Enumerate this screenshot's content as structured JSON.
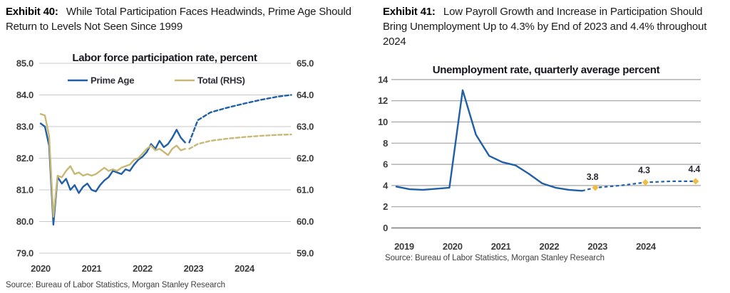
{
  "left_panel": {
    "exhibit_label": "Exhibit 40:",
    "exhibit_title": "While Total Participation Faces Headwinds, Prime Age Should Return to Levels Not Seen Since 1999",
    "source": "Source: Bureau of Labor Statistics, Morgan Stanley Research"
  },
  "right_panel": {
    "exhibit_label": "Exhibit 41:",
    "exhibit_title": "Low Payroll Growth and Increase in Participation Should Bring Unemployment Up to 4.3% by End of 2023 and 4.4% throughout 2024",
    "source": "Source: Bureau of Labor Statistics, Morgan Stanley Research"
  },
  "colors": {
    "blue_line": "#1f5fa8",
    "tan_line": "#c9b873",
    "marker_gold": "#efbd42",
    "grid_left": "#c9c9c9",
    "grid_right": "#a3a3a3",
    "axis_baseline": "#8a8a8a"
  },
  "chart_data": [
    {
      "type": "line",
      "title": "Labor force participation rate, percent",
      "x_ticks": [
        "2020",
        "2021",
        "2022",
        "2023",
        "2024"
      ],
      "left_axis": {
        "ticks": [
          "85.0",
          "84.0",
          "83.0",
          "82.0",
          "81.0",
          "80.0",
          "79.0"
        ],
        "min": 79,
        "max": 85
      },
      "right_axis": {
        "ticks": [
          "65.0",
          "64.0",
          "63.0",
          "62.0",
          "61.0",
          "60.0",
          "59.0"
        ],
        "min": 59,
        "max": 65
      },
      "legend": [
        {
          "name": "Prime Age",
          "color": "#1f5fa8"
        },
        {
          "name": "Total (RHS)",
          "color": "#c9b873"
        }
      ],
      "x_unit": "months from Jan 2020",
      "series": [
        {
          "id": "prime-age-line",
          "name": "Prime Age",
          "axis": "left",
          "style": "solid",
          "color": "#1f5fa8",
          "start_month": 0,
          "values": [
            83.1,
            83.0,
            82.4,
            79.9,
            81.4,
            81.2,
            81.35,
            81.0,
            81.15,
            80.9,
            81.1,
            81.2,
            81.0,
            80.95,
            81.15,
            81.3,
            81.4,
            81.6,
            81.55,
            81.5,
            81.65,
            81.6,
            81.8,
            81.95,
            82.05,
            82.2,
            82.45,
            82.3,
            82.55,
            82.35,
            82.45,
            82.65,
            82.9,
            82.65,
            82.5
          ]
        },
        {
          "id": "prime-age-forecast-line",
          "name": "Prime Age forecast",
          "axis": "left",
          "style": "dashed",
          "color": "#1f5fa8",
          "points": [
            [
              35,
              82.5
            ],
            [
              37,
              83.2
            ],
            [
              40,
              83.45
            ],
            [
              44,
              83.6
            ],
            [
              48,
              83.73
            ],
            [
              52,
              83.85
            ],
            [
              56,
              83.95
            ],
            [
              59,
              84.0
            ]
          ]
        },
        {
          "id": "total-line",
          "name": "Total (RHS)",
          "axis": "right",
          "style": "solid",
          "color": "#c9b873",
          "start_month": 0,
          "values": [
            63.4,
            63.35,
            62.7,
            60.15,
            61.45,
            61.4,
            61.6,
            61.75,
            61.5,
            61.55,
            61.45,
            61.5,
            61.45,
            61.5,
            61.6,
            61.7,
            61.6,
            61.65,
            61.6,
            61.7,
            61.75,
            61.8,
            61.95,
            62.0,
            62.15,
            62.3,
            62.4,
            62.25,
            62.3,
            62.2,
            62.1,
            62.3,
            62.4,
            62.25,
            62.3
          ]
        },
        {
          "id": "total-forecast-line",
          "name": "Total (RHS) forecast",
          "axis": "right",
          "style": "dashed",
          "color": "#c9b873",
          "points": [
            [
              35,
              62.3
            ],
            [
              37,
              62.45
            ],
            [
              40,
              62.55
            ],
            [
              44,
              62.62
            ],
            [
              48,
              62.67
            ],
            [
              52,
              62.71
            ],
            [
              56,
              62.74
            ],
            [
              59,
              62.75
            ]
          ]
        }
      ]
    },
    {
      "type": "line",
      "title": "Unemployment rate, quarterly average percent",
      "x_ticks": [
        "2019",
        "2020",
        "2021",
        "2022",
        "2023",
        "2024"
      ],
      "y_axis": {
        "ticks": [
          "14",
          "12",
          "10",
          "8",
          "6",
          "4",
          "2",
          "0"
        ],
        "min": 0,
        "max": 14
      },
      "x_unit": "quarters from 2019Q1",
      "series": [
        {
          "id": "unemployment-line",
          "name": "Unemployment rate",
          "style": "solid",
          "color": "#1f5fa8",
          "values": [
            3.9,
            3.65,
            3.6,
            3.7,
            3.8,
            13.0,
            8.8,
            6.8,
            6.2,
            5.9,
            5.1,
            4.2,
            3.8,
            3.6,
            3.5
          ]
        },
        {
          "id": "unemployment-forecast-line",
          "name": "Forecast",
          "style": "dashed",
          "color": "#1f5fa8",
          "marker": "diamond",
          "marker_color": "#efbd42",
          "values": [
            3.8,
            3.9,
            4.0,
            4.15,
            4.3,
            4.35,
            4.4,
            4.4,
            4.4
          ],
          "labeled_points": [
            {
              "index": 0,
              "label": "3.8"
            },
            {
              "index": 4,
              "label": "4.3"
            },
            {
              "index": 8,
              "label": "4.4"
            }
          ]
        }
      ]
    }
  ]
}
